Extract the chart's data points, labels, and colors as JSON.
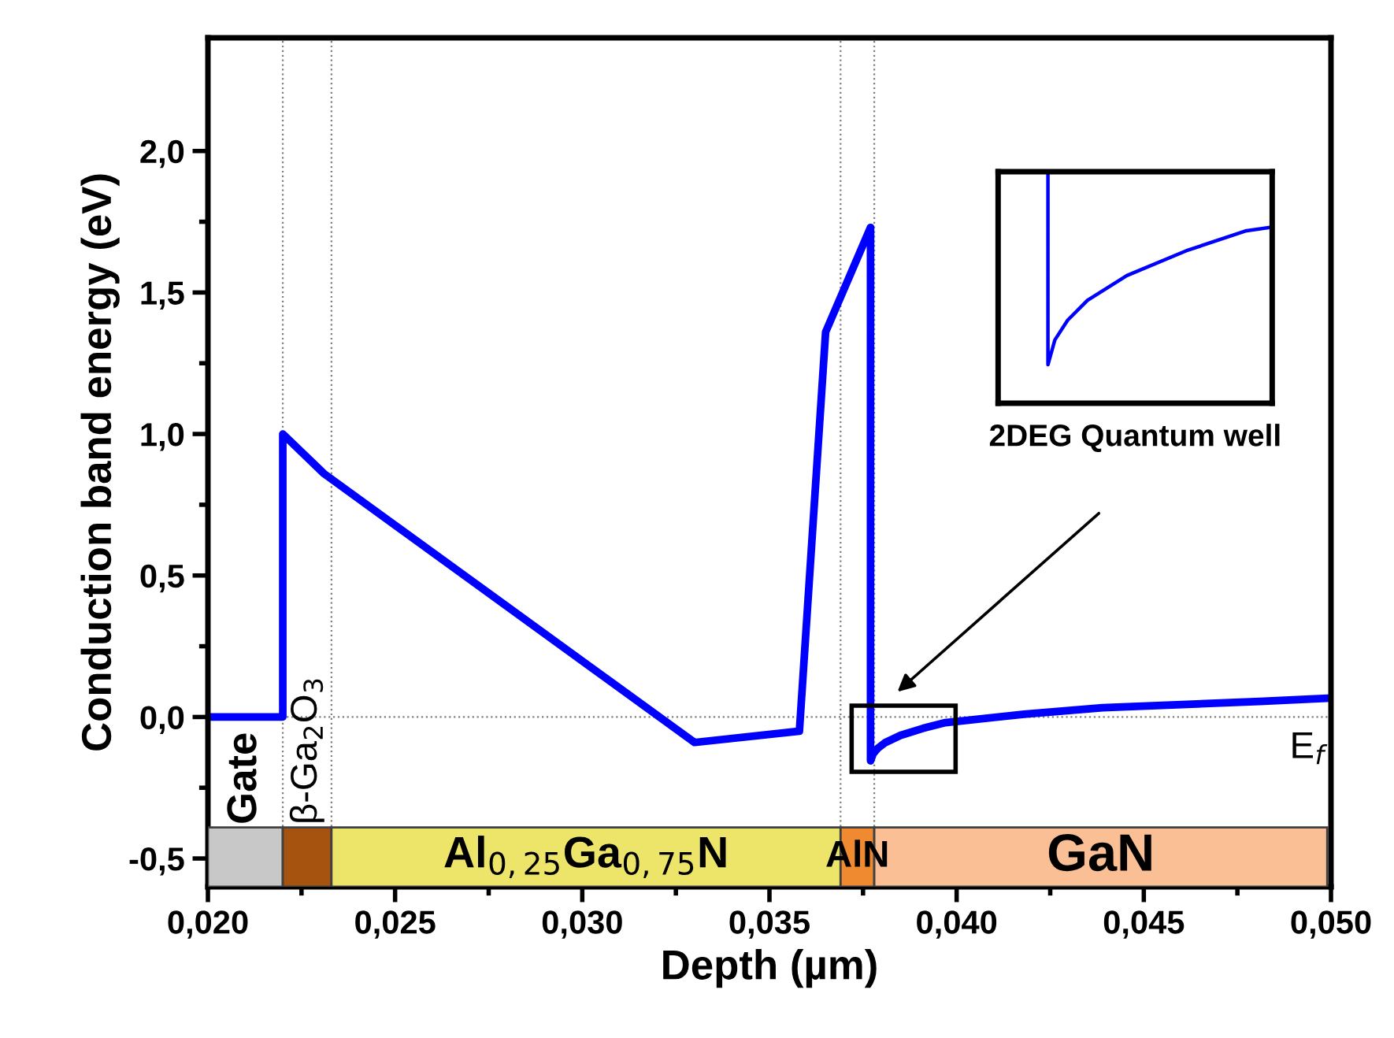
{
  "chart_data": [
    {
      "type": "line",
      "xlabel": "Depth (µm)",
      "ylabel": "Conduction band energy (eV)",
      "x": [
        0.02,
        0.022,
        0.022,
        0.0231,
        0.033,
        0.0358,
        0.0365,
        0.0377,
        0.0377,
        0.03777,
        0.0379,
        0.0381,
        0.0385,
        0.0391,
        0.0397,
        0.0418,
        0.0439,
        0.0481,
        0.05
      ],
      "series": [
        {
          "color": "#0000ff",
          "values": [
            0.0,
            0.0,
            1.0,
            0.86,
            -0.09,
            -0.05,
            1.36,
            1.73,
            -0.155,
            -0.13,
            -0.11,
            -0.09,
            -0.065,
            -0.04,
            -0.02,
            0.01,
            0.033,
            0.055,
            0.067
          ]
        }
      ],
      "xlim": [
        0.02,
        0.05
      ],
      "ylim": [
        -0.6,
        2.4
      ],
      "xticks": [
        {
          "value": 0.02,
          "label": "0,020"
        },
        {
          "value": 0.025,
          "label": "0,025"
        },
        {
          "value": 0.03,
          "label": "0,030"
        },
        {
          "value": 0.035,
          "label": "0,035"
        },
        {
          "value": 0.04,
          "label": "0,040"
        },
        {
          "value": 0.045,
          "label": "0,045"
        },
        {
          "value": 0.05,
          "label": "0,050"
        }
      ],
      "yticks": [
        {
          "value": -0.5,
          "label": "-0,5"
        },
        {
          "value": 0.0,
          "label": "0,0"
        },
        {
          "value": 0.5,
          "label": "0,5"
        },
        {
          "value": 1.0,
          "label": "1,0"
        },
        {
          "value": 1.5,
          "label": "1,5"
        },
        {
          "value": 2.0,
          "label": "2,0"
        }
      ],
      "ref_lines": [
        {
          "axis": "y",
          "value": 0.0,
          "label": "E$_{f}$",
          "line_style": "dotted",
          "color": "#808080"
        },
        {
          "axis": "x",
          "value": 0.022,
          "line_style": "dotted",
          "color": "#808080"
        },
        {
          "axis": "x",
          "value": 0.0233,
          "line_style": "dotted",
          "color": "#808080"
        },
        {
          "axis": "x",
          "value": 0.0369,
          "line_style": "dotted",
          "color": "#808080"
        },
        {
          "axis": "x",
          "value": 0.0378,
          "line_style": "dotted",
          "color": "#808080"
        }
      ],
      "bands": [
        {
          "axis": "x",
          "from": 0.02,
          "to": 0.022,
          "label": "Gate",
          "color": "#c8c8c8"
        },
        {
          "axis": "x",
          "from": 0.022,
          "to": 0.0233,
          "label": "β-Ga$_{2}$O$_{3}$",
          "color": "#a65310"
        },
        {
          "axis": "x",
          "from": 0.0233,
          "to": 0.0369,
          "label": "Al$_{0,25}$Ga$_{0,75}$N",
          "color": "#ede56a"
        },
        {
          "axis": "x",
          "from": 0.0369,
          "to": 0.0378,
          "label": "AlN",
          "color": "#f08a30"
        },
        {
          "axis": "x",
          "from": 0.0378,
          "to": 0.0499,
          "label": "GaN",
          "color": "#fbbf96"
        }
      ],
      "annotations": [
        "2DEG Quantum well"
      ],
      "grid": false,
      "line_style": "solid",
      "marker": "none"
    }
  ]
}
